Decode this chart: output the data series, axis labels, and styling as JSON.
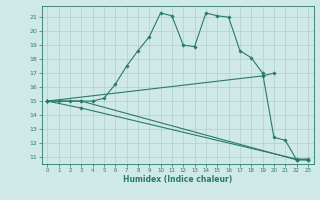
{
  "xlabel": "Humidex (Indice chaleur)",
  "bg_color": "#cfe8e8",
  "grid_color": "#b0d0d0",
  "line_color": "#2a7a6a",
  "yticks": [
    11,
    12,
    13,
    14,
    15,
    16,
    17,
    18,
    19,
    20,
    21
  ],
  "xticks": [
    0,
    1,
    2,
    3,
    4,
    5,
    6,
    7,
    8,
    9,
    10,
    11,
    12,
    13,
    14,
    15,
    16,
    17,
    18,
    19,
    20,
    21,
    22,
    23
  ],
  "xlim": [
    -0.5,
    23.5
  ],
  "ylim": [
    10.5,
    21.8
  ],
  "line1_x": [
    0,
    1,
    2,
    3,
    4,
    5,
    6,
    7,
    8,
    9,
    10,
    11,
    12,
    13,
    14,
    15,
    16,
    17,
    18,
    19,
    20,
    21,
    22,
    23
  ],
  "line1_y": [
    15,
    15,
    15,
    15,
    15,
    15.2,
    16.2,
    17.5,
    18.6,
    19.6,
    21.3,
    21.1,
    19.0,
    18.9,
    21.3,
    21.1,
    21.0,
    18.6,
    18.1,
    17.0,
    12.4,
    12.2,
    10.8,
    10.8
  ],
  "line2_x": [
    0,
    3,
    22,
    23
  ],
  "line2_y": [
    15,
    15,
    10.8,
    10.8
  ],
  "line3_x": [
    0,
    3,
    22,
    23
  ],
  "line3_y": [
    15,
    14.5,
    10.85,
    10.85
  ],
  "line4_x": [
    0,
    19,
    20
  ],
  "line4_y": [
    15,
    16.8,
    17.0
  ]
}
